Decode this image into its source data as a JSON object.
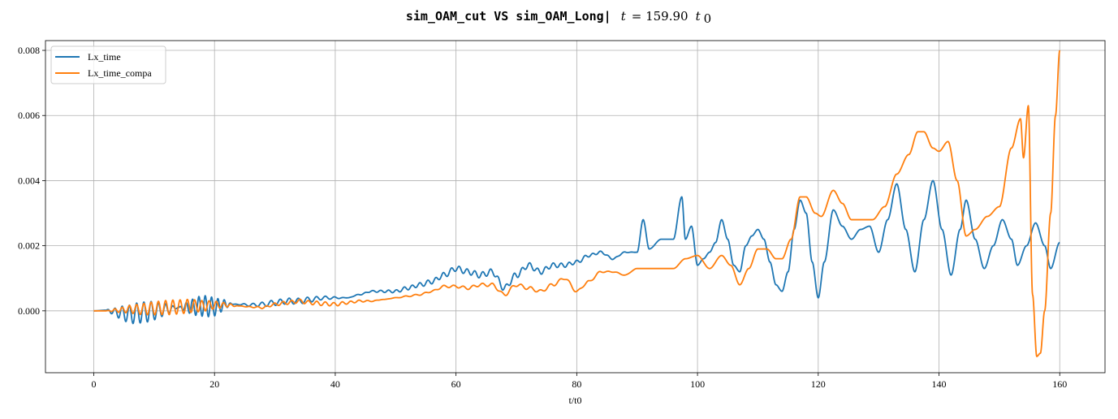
{
  "chart_data": {
    "type": "line",
    "title_code": "sim_OAM_cut VS sim_OAM_Long|",
    "title_math_var": "t",
    "title_math_value": "= 159.90",
    "title_math_unit": "t",
    "title_math_unit_sub": "0",
    "xlabel": "t/t0",
    "ylabel": "",
    "xlim": [
      -8,
      167.5
    ],
    "ylim": [
      -0.0019,
      0.0083
    ],
    "x_ticks": [
      0,
      20,
      40,
      60,
      80,
      100,
      120,
      140,
      160
    ],
    "x_tick_labels": [
      "0",
      "20",
      "40",
      "60",
      "80",
      "100",
      "120",
      "140",
      "160"
    ],
    "y_ticks": [
      0.0,
      0.002,
      0.004,
      0.006,
      0.008
    ],
    "y_tick_labels": [
      "0.000",
      "0.002",
      "0.004",
      "0.006",
      "0.008"
    ],
    "grid": true,
    "legend_position": "upper-left",
    "series": [
      {
        "name": "Lx_time",
        "color": "#1f77b4",
        "anchors": [
          [
            0,
            0
          ],
          [
            2,
            2e-05
          ],
          [
            4,
            -5e-05
          ],
          [
            6,
            -0.0001
          ],
          [
            8,
            -5e-05
          ],
          [
            10,
            0
          ],
          [
            12,
            5e-05
          ],
          [
            14,
            0.0001
          ],
          [
            16,
            0.00012
          ],
          [
            18,
            0.00015
          ],
          [
            20,
            0.00012
          ],
          [
            22,
            0.0002
          ],
          [
            24,
            0.0002
          ],
          [
            26,
            0.00018
          ],
          [
            28,
            0.0002
          ],
          [
            30,
            0.00025
          ],
          [
            32,
            0.0003
          ],
          [
            34,
            0.0003
          ],
          [
            36,
            0.00035
          ],
          [
            38,
            0.0004
          ],
          [
            40,
            0.0004
          ],
          [
            42,
            0.0004
          ],
          [
            44,
            0.0005
          ],
          [
            46,
            0.0006
          ],
          [
            48,
            0.0006
          ],
          [
            50,
            0.0006
          ],
          [
            52,
            0.0007
          ],
          [
            54,
            0.0008
          ],
          [
            56,
            0.0009
          ],
          [
            58,
            0.0011
          ],
          [
            60,
            0.0013
          ],
          [
            62,
            0.0012
          ],
          [
            64,
            0.0011
          ],
          [
            66,
            0.0012
          ],
          [
            68,
            0.0007
          ],
          [
            70,
            0.0011
          ],
          [
            72,
            0.0014
          ],
          [
            74,
            0.0012
          ],
          [
            76,
            0.0014
          ],
          [
            78,
            0.0014
          ],
          [
            80,
            0.0015
          ],
          [
            82,
            0.0017
          ],
          [
            84,
            0.0018
          ],
          [
            86,
            0.0016
          ],
          [
            88,
            0.0018
          ],
          [
            90,
            0.0018
          ],
          [
            91,
            0.0028
          ],
          [
            92,
            0.0019
          ],
          [
            94,
            0.0022
          ],
          [
            96,
            0.0022
          ],
          [
            97.4,
            0.0035
          ],
          [
            98,
            0.0022
          ],
          [
            99,
            0.0026
          ],
          [
            100,
            0.0014
          ],
          [
            101,
            0.0016
          ],
          [
            102,
            0.0018
          ],
          [
            103,
            0.0021
          ],
          [
            104,
            0.0028
          ],
          [
            105,
            0.0022
          ],
          [
            106,
            0.0014
          ],
          [
            107,
            0.0012
          ],
          [
            108,
            0.002
          ],
          [
            109,
            0.0023
          ],
          [
            110,
            0.0025
          ],
          [
            111,
            0.0022
          ],
          [
            112,
            0.0015
          ],
          [
            113,
            0.0008
          ],
          [
            114,
            0.0006
          ],
          [
            115,
            0.0012
          ],
          [
            116,
            0.0025
          ],
          [
            117,
            0.0034
          ],
          [
            118,
            0.003
          ],
          [
            119,
            0.0015
          ],
          [
            120,
            0.0004
          ],
          [
            121,
            0.0015
          ],
          [
            122.5,
            0.0031
          ],
          [
            124,
            0.0026
          ],
          [
            125.5,
            0.0022
          ],
          [
            127,
            0.0025
          ],
          [
            128.5,
            0.0026
          ],
          [
            130,
            0.0018
          ],
          [
            131.5,
            0.0028
          ],
          [
            133,
            0.0039
          ],
          [
            134.5,
            0.0025
          ],
          [
            136,
            0.0012
          ],
          [
            137.5,
            0.0028
          ],
          [
            139,
            0.004
          ],
          [
            140.5,
            0.0025
          ],
          [
            142,
            0.0011
          ],
          [
            143.5,
            0.0025
          ],
          [
            144.5,
            0.0034
          ],
          [
            146,
            0.0022
          ],
          [
            147.5,
            0.0013
          ],
          [
            149,
            0.002
          ],
          [
            150.5,
            0.0028
          ],
          [
            152,
            0.0022
          ],
          [
            153,
            0.0014
          ],
          [
            154.5,
            0.002
          ],
          [
            156,
            0.0027
          ],
          [
            157.5,
            0.002
          ],
          [
            158.5,
            0.0013
          ],
          [
            160,
            0.0021
          ]
        ],
        "osc": [
          [
            2,
            14,
            0.00032,
            1.2
          ],
          [
            14,
            23,
            0.00032,
            1.05
          ],
          [
            23,
            42,
            9e-05,
            1.5
          ],
          [
            42,
            90,
            9e-05,
            1.3
          ]
        ]
      },
      {
        "name": "Lx_time_compa",
        "color": "#ff7f0e",
        "anchors": [
          [
            0,
            0
          ],
          [
            2,
            0.0
          ],
          [
            4,
            2e-05
          ],
          [
            6,
            5e-05
          ],
          [
            8,
            5e-05
          ],
          [
            10,
            8e-05
          ],
          [
            12,
            0.0001
          ],
          [
            14,
            0.00012
          ],
          [
            16,
            0.00015
          ],
          [
            18,
            0.00015
          ],
          [
            20,
            0.00018
          ],
          [
            22,
            0.00018
          ],
          [
            24,
            0.00015
          ],
          [
            26,
            0.00012
          ],
          [
            28,
            0.0001
          ],
          [
            30,
            0.0002
          ],
          [
            32,
            0.00025
          ],
          [
            34,
            0.0003
          ],
          [
            36,
            0.00025
          ],
          [
            38,
            0.00022
          ],
          [
            40,
            0.0002
          ],
          [
            42,
            0.00025
          ],
          [
            44,
            0.0003
          ],
          [
            46,
            0.0003
          ],
          [
            48,
            0.00035
          ],
          [
            50,
            0.0004
          ],
          [
            52,
            0.00045
          ],
          [
            54,
            0.0005
          ],
          [
            56,
            0.0006
          ],
          [
            58,
            0.00075
          ],
          [
            60,
            0.00075
          ],
          [
            62,
            0.0007
          ],
          [
            64,
            0.0008
          ],
          [
            66,
            0.0008
          ],
          [
            68,
            0.0005
          ],
          [
            70,
            0.0008
          ],
          [
            72,
            0.0007
          ],
          [
            74,
            0.0006
          ],
          [
            76,
            0.0008
          ],
          [
            78,
            0.001
          ],
          [
            80,
            0.0006
          ],
          [
            82,
            0.0009
          ],
          [
            84,
            0.0012
          ],
          [
            86,
            0.0012
          ],
          [
            88,
            0.0011
          ],
          [
            90,
            0.0013
          ],
          [
            92,
            0.0013
          ],
          [
            94,
            0.0013
          ],
          [
            96,
            0.0013
          ],
          [
            98,
            0.0016
          ],
          [
            100,
            0.0017
          ],
          [
            102,
            0.0013
          ],
          [
            104,
            0.0017
          ],
          [
            105.5,
            0.0014
          ],
          [
            107,
            0.0008
          ],
          [
            108.5,
            0.0013
          ],
          [
            110,
            0.0019
          ],
          [
            111.5,
            0.0019
          ],
          [
            113,
            0.0016
          ],
          [
            114,
            0.0016
          ],
          [
            115.5,
            0.0022
          ],
          [
            117,
            0.0035
          ],
          [
            118,
            0.0035
          ],
          [
            119.5,
            0.003
          ],
          [
            120.5,
            0.0029
          ],
          [
            122.5,
            0.0037
          ],
          [
            124,
            0.0033
          ],
          [
            125.5,
            0.0028
          ],
          [
            127,
            0.0028
          ],
          [
            129,
            0.0028
          ],
          [
            131,
            0.0032
          ],
          [
            133,
            0.0042
          ],
          [
            135,
            0.0048
          ],
          [
            136.5,
            0.0055
          ],
          [
            137.5,
            0.0055
          ],
          [
            139,
            0.005
          ],
          [
            140,
            0.0049
          ],
          [
            141.5,
            0.0052
          ],
          [
            143,
            0.004
          ],
          [
            144.5,
            0.0023
          ],
          [
            146,
            0.0025
          ],
          [
            148,
            0.0029
          ],
          [
            150,
            0.0032
          ],
          [
            152,
            0.005
          ],
          [
            153.5,
            0.0059
          ],
          [
            154,
            0.0047
          ],
          [
            154.8,
            0.0063
          ],
          [
            155.5,
            0.0005
          ],
          [
            156.2,
            -0.0014
          ],
          [
            156.8,
            -0.0013
          ],
          [
            157.5,
            0.0
          ],
          [
            158.5,
            0.003
          ],
          [
            159.3,
            0.006
          ],
          [
            160,
            0.008
          ]
        ],
        "osc": [
          [
            2,
            24,
            0.00022,
            1.2
          ],
          [
            24,
            48,
            6e-05,
            1.4
          ],
          [
            48,
            90,
            5e-05,
            1.6
          ]
        ]
      }
    ]
  }
}
